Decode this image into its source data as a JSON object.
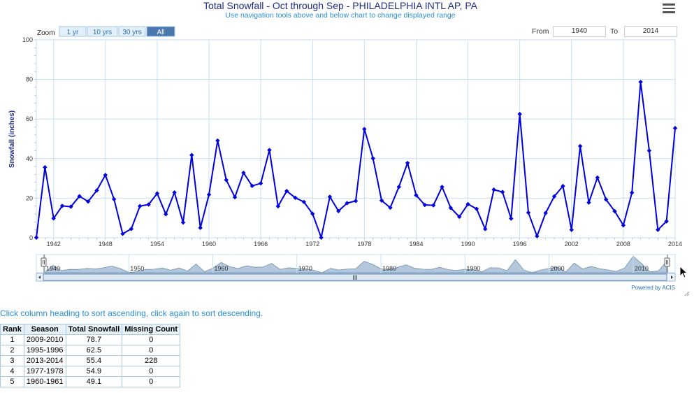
{
  "header": {
    "title": "Total Snowfall - Oct through Sep - PHILADELPHIA INTL AP, PA",
    "subtitle": "Use navigation tools above and below chart to change displayed range"
  },
  "zoom": {
    "label": "Zoom",
    "buttons": [
      "1 yr",
      "10 yrs",
      "30 yrs",
      "All"
    ],
    "selected": "All"
  },
  "range": {
    "from_label": "From",
    "from_value": "1940",
    "to_label": "To",
    "to_value": "2014"
  },
  "credit": "Powered by ACIS",
  "chart_data": {
    "type": "line",
    "title": "Total Snowfall - Oct through Sep - PHILADELPHIA INTL AP, PA",
    "ylabel": "Snowfall (inches)",
    "xlabel": "",
    "ylim": [
      0,
      100
    ],
    "yticks": [
      0,
      20,
      40,
      60,
      80,
      100
    ],
    "xlim": [
      1940,
      2014
    ],
    "xticks": [
      1942,
      1948,
      1954,
      1960,
      1966,
      1972,
      1978,
      1984,
      1990,
      1996,
      2002,
      2008,
      2014
    ],
    "grid": true,
    "series_color": "#0000dd",
    "x": [
      1940,
      1941,
      1942,
      1943,
      1944,
      1945,
      1946,
      1947,
      1948,
      1949,
      1950,
      1951,
      1952,
      1953,
      1954,
      1955,
      1956,
      1957,
      1958,
      1959,
      1960,
      1961,
      1962,
      1963,
      1964,
      1965,
      1966,
      1967,
      1968,
      1969,
      1970,
      1971,
      1972,
      1973,
      1974,
      1975,
      1976,
      1977,
      1978,
      1979,
      1980,
      1981,
      1982,
      1983,
      1984,
      1985,
      1986,
      1987,
      1988,
      1989,
      1990,
      1991,
      1992,
      1993,
      1994,
      1995,
      1996,
      1997,
      1998,
      1999,
      2000,
      2001,
      2002,
      2003,
      2004,
      2005,
      2006,
      2007,
      2008,
      2009,
      2010,
      2011,
      2012,
      2013,
      2014
    ],
    "values": [
      0.1,
      35.6,
      9.8,
      16.1,
      15.7,
      21.0,
      18.3,
      23.9,
      31.7,
      19.5,
      2.0,
      4.5,
      16.0,
      16.8,
      22.4,
      11.9,
      22.9,
      7.7,
      41.8,
      5.0,
      21.8,
      49.1,
      29.2,
      20.5,
      32.8,
      26.2,
      27.5,
      44.3,
      15.9,
      23.6,
      20.2,
      18.1,
      12.1,
      0.1,
      20.7,
      13.5,
      17.5,
      18.6,
      54.9,
      40.1,
      18.8,
      15.2,
      25.7,
      37.8,
      21.5,
      16.6,
      16.4,
      25.7,
      15.1,
      10.6,
      17.0,
      14.6,
      4.4,
      24.3,
      23.1,
      9.7,
      62.5,
      12.7,
      0.8,
      12.5,
      20.9,
      26.1,
      4.0,
      46.3,
      17.8,
      30.4,
      19.3,
      13.4,
      6.3,
      22.8,
      78.7,
      44.0,
      4.0,
      8.3,
      55.4
    ]
  },
  "navigator": {
    "labels": [
      "1940",
      "1950",
      "1960",
      "1970",
      "1980",
      "1990",
      "2000",
      "2010"
    ],
    "scroll_grip": "III"
  },
  "table": {
    "sort_note": "Click column heading to sort ascending, click again to sort descending.",
    "headers": [
      "Rank",
      "Season",
      "Total Snowfall",
      "Missing Count"
    ],
    "rows": [
      {
        "rank": "1",
        "season": "2009-2010",
        "snow": "78.7",
        "missing": "0"
      },
      {
        "rank": "2",
        "season": "1995-1996",
        "snow": "62.5",
        "missing": "0"
      },
      {
        "rank": "3",
        "season": "2013-2014",
        "snow": "55.4",
        "missing": "228"
      },
      {
        "rank": "4",
        "season": "1977-1978",
        "snow": "54.9",
        "missing": "0"
      },
      {
        "rank": "5",
        "season": "1960-1961",
        "snow": "49.1",
        "missing": "0"
      }
    ]
  }
}
